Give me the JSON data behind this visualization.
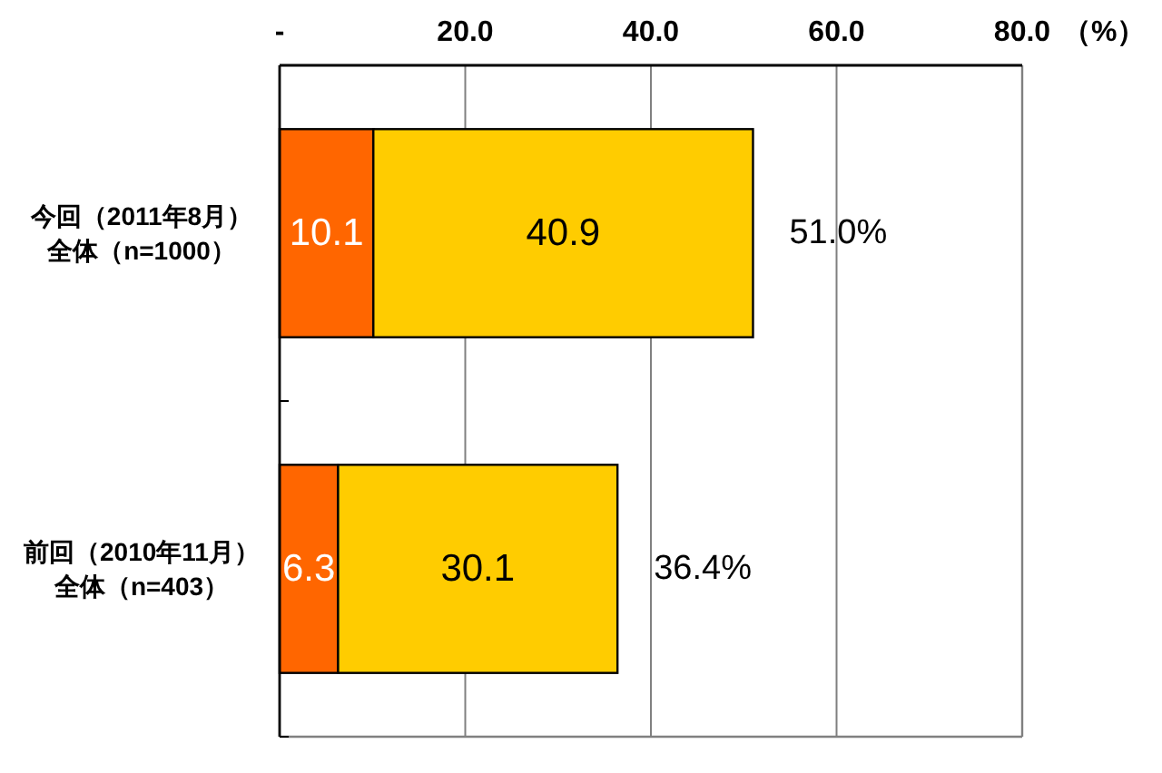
{
  "chart_data": {
    "type": "bar",
    "orientation": "horizontal",
    "stacked": true,
    "categories": [
      "今回（2011年8月）全体（n=1000）",
      "前回（2010年11月）全体（n=403）"
    ],
    "series": [
      {
        "color": "#ff6600",
        "values": [
          10.1,
          6.3
        ]
      },
      {
        "color": "#ffcc00",
        "values": [
          40.9,
          30.1
        ]
      }
    ],
    "xlim": [
      0,
      80
    ],
    "xticks": [
      {
        "value": 0,
        "label": "-"
      },
      {
        "value": 20,
        "label": "20.0"
      },
      {
        "value": 40,
        "label": "40.0"
      },
      {
        "value": 60,
        "label": "60.0"
      },
      {
        "value": 80,
        "label": "80.0"
      }
    ],
    "xlabel": "（%）",
    "grid": "x",
    "data_labels": true,
    "totals": [
      "51.0%",
      "36.4%"
    ]
  }
}
